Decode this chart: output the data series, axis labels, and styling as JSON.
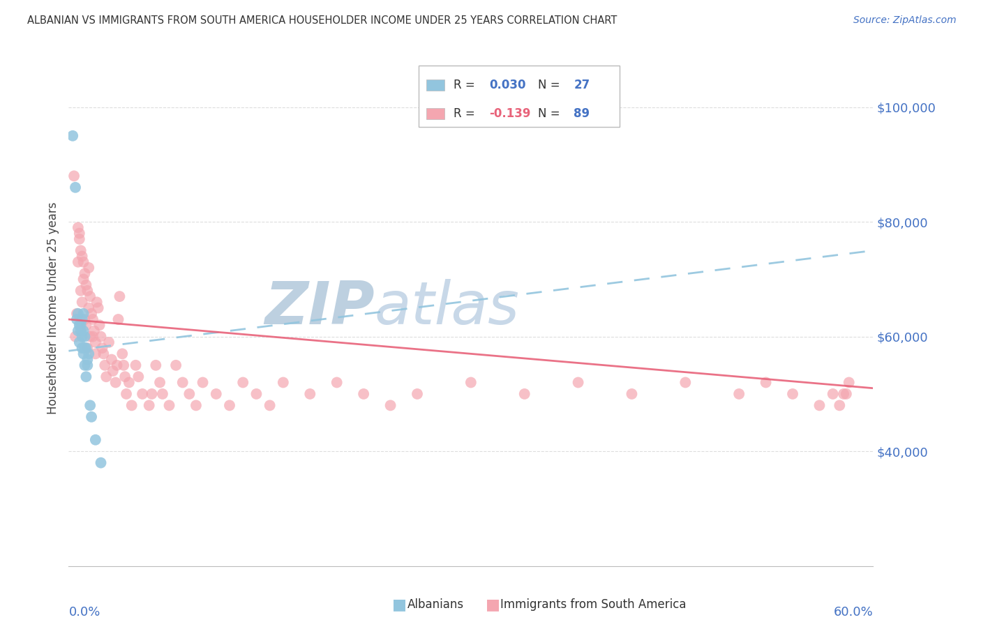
{
  "title": "ALBANIAN VS IMMIGRANTS FROM SOUTH AMERICA HOUSEHOLDER INCOME UNDER 25 YEARS CORRELATION CHART",
  "source": "Source: ZipAtlas.com",
  "ylabel": "Householder Income Under 25 years",
  "xmin": 0.0,
  "xmax": 0.6,
  "ymin": 20000,
  "ymax": 110000,
  "yticks": [
    40000,
    60000,
    80000,
    100000
  ],
  "ytick_labels": [
    "$40,000",
    "$60,000",
    "$80,000",
    "$100,000"
  ],
  "blue_color": "#92C5DE",
  "pink_color": "#F4A6B0",
  "blue_line_color": "#92C5DE",
  "pink_line_color": "#E8637A",
  "text_blue": "#4472C4",
  "text_pink": "#E8637A",
  "watermark_zip_color": "#BDD0E0",
  "watermark_atlas_color": "#C8D8E8",
  "albanians_x": [
    0.003,
    0.005,
    0.006,
    0.007,
    0.007,
    0.008,
    0.008,
    0.009,
    0.009,
    0.01,
    0.01,
    0.01,
    0.011,
    0.011,
    0.011,
    0.012,
    0.012,
    0.012,
    0.013,
    0.013,
    0.014,
    0.014,
    0.015,
    0.016,
    0.017,
    0.02,
    0.024
  ],
  "albanians_y": [
    95000,
    86000,
    63000,
    64000,
    61000,
    62000,
    59000,
    62000,
    61000,
    58000,
    63000,
    60000,
    61000,
    57000,
    64000,
    60000,
    58000,
    55000,
    58000,
    53000,
    56000,
    55000,
    57000,
    48000,
    46000,
    42000,
    38000
  ],
  "southam_x": [
    0.004,
    0.005,
    0.006,
    0.007,
    0.007,
    0.008,
    0.008,
    0.009,
    0.009,
    0.01,
    0.01,
    0.011,
    0.011,
    0.012,
    0.012,
    0.013,
    0.013,
    0.014,
    0.014,
    0.015,
    0.015,
    0.016,
    0.016,
    0.017,
    0.018,
    0.018,
    0.019,
    0.02,
    0.02,
    0.021,
    0.022,
    0.023,
    0.024,
    0.025,
    0.026,
    0.027,
    0.028,
    0.03,
    0.032,
    0.033,
    0.035,
    0.036,
    0.037,
    0.038,
    0.04,
    0.041,
    0.042,
    0.043,
    0.045,
    0.047,
    0.05,
    0.052,
    0.055,
    0.06,
    0.062,
    0.065,
    0.068,
    0.07,
    0.075,
    0.08,
    0.085,
    0.09,
    0.095,
    0.1,
    0.11,
    0.12,
    0.13,
    0.14,
    0.15,
    0.16,
    0.18,
    0.2,
    0.22,
    0.24,
    0.26,
    0.3,
    0.34,
    0.38,
    0.42,
    0.46,
    0.5,
    0.52,
    0.54,
    0.56,
    0.57,
    0.575,
    0.578,
    0.58,
    0.582
  ],
  "southam_y": [
    88000,
    60000,
    64000,
    73000,
    79000,
    78000,
    77000,
    75000,
    68000,
    74000,
    66000,
    73000,
    70000,
    71000,
    63000,
    69000,
    62000,
    68000,
    58000,
    72000,
    65000,
    60000,
    67000,
    64000,
    63000,
    60000,
    61000,
    57000,
    59000,
    66000,
    65000,
    62000,
    60000,
    58000,
    57000,
    55000,
    53000,
    59000,
    56000,
    54000,
    52000,
    55000,
    63000,
    67000,
    57000,
    55000,
    53000,
    50000,
    52000,
    48000,
    55000,
    53000,
    50000,
    48000,
    50000,
    55000,
    52000,
    50000,
    48000,
    55000,
    52000,
    50000,
    48000,
    52000,
    50000,
    48000,
    52000,
    50000,
    48000,
    52000,
    50000,
    52000,
    50000,
    48000,
    50000,
    52000,
    50000,
    52000,
    50000,
    52000,
    50000,
    52000,
    50000,
    48000,
    50000,
    48000,
    50000,
    50000,
    52000
  ],
  "blue_trendline_x0": 0.0,
  "blue_trendline_x1": 0.6,
  "blue_trendline_y0": 57500,
  "blue_trendline_y1": 75000,
  "pink_trendline_x0": 0.0,
  "pink_trendline_x1": 0.6,
  "pink_trendline_y0": 63000,
  "pink_trendline_y1": 51000
}
